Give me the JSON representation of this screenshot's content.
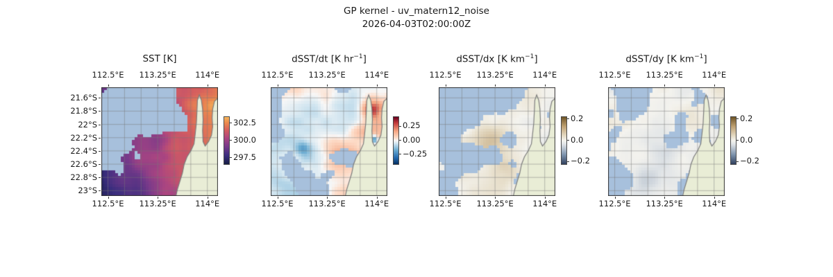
{
  "figure": {
    "title": "GP kernel - uv_matern12_noise",
    "timestamp": "2026-04-03T02:00:00Z"
  },
  "chart_data": {
    "type": "heatmap",
    "title": "GP kernel - uv_matern12_noise",
    "subtitle": "2026-04-03T02:00:00Z",
    "geo": {
      "lon_range": [
        112.4,
        114.16
      ],
      "lat_range": [
        -23.08,
        -21.44
      ],
      "grid_lon_step": 0.25,
      "grid_lat_step": 0.2
    },
    "x_tick_labels": [
      "112.5°E",
      "113.25°E",
      "114°E"
    ],
    "x_tick_lons": [
      112.5,
      113.25,
      114
    ],
    "y_tick_labels": [
      "21.6°S",
      "21.8°S",
      "22°S",
      "22.2°S",
      "22.4°S",
      "22.6°S",
      "22.8°S",
      "23°S"
    ],
    "y_tick_lats": [
      -21.6,
      -21.8,
      -22.0,
      -22.2,
      -22.4,
      -22.6,
      -22.8,
      -23.0
    ],
    "panels": [
      {
        "id": "sst",
        "title_pre": "SST [K]",
        "title_sup": "",
        "title_post": "",
        "colormap": "thermal",
        "vmin": 296.6,
        "vmax": 303.4,
        "cbar_ticks": [
          {
            "value": 302.5,
            "label": "302.5"
          },
          {
            "value": 300.0,
            "label": "300.0"
          },
          {
            "value": 297.5,
            "label": "297.5"
          }
        ],
        "field": "gradient",
        "seed": 7,
        "cloud_threshold": 0.64,
        "cloud_blobs": [
          [
            0.28,
            0.1,
            0.3,
            0.42
          ],
          [
            0.1,
            0.32,
            0.22,
            0.35
          ],
          [
            0.5,
            0.16,
            0.16,
            0.3
          ],
          [
            0.03,
            0.62,
            0.1,
            0.28
          ],
          [
            0.2,
            0.52,
            0.08,
            0.2
          ]
        ]
      },
      {
        "id": "dsst_dt",
        "title_pre": "dSST/dt [K hr",
        "title_sup": "−1",
        "title_post": "]",
        "colormap": "rdbu",
        "vmin": -0.42,
        "vmax": 0.42,
        "cbar_ticks": [
          {
            "value": 0.25,
            "label": "0.25"
          },
          {
            "value": 0.0,
            "label": "0.00"
          },
          {
            "value": -0.25,
            "label": "−0.25"
          }
        ],
        "field": "coastal",
        "seed": 13,
        "cloud_threshold": 0.7,
        "cloud_blobs": [
          [
            0.04,
            0.04,
            0.14,
            0.4
          ],
          [
            0.16,
            0.7,
            0.1,
            0.3
          ],
          [
            0.03,
            0.45,
            0.07,
            0.28
          ],
          [
            0.3,
            0.92,
            0.08,
            0.25
          ],
          [
            0.92,
            0.6,
            0.05,
            0.25
          ]
        ]
      },
      {
        "id": "dsst_dx",
        "title_pre": "dSST/dx [K km",
        "title_sup": "−1",
        "title_post": "]",
        "colormap": "diff",
        "vmin": -0.22,
        "vmax": 0.22,
        "cbar_ticks": [
          {
            "value": 0.2,
            "label": "0.2"
          },
          {
            "value": 0.0,
            "label": "0.0"
          },
          {
            "value": -0.2,
            "label": "−0.2"
          }
        ],
        "field": "weak-brown",
        "seed": 21,
        "cloud_threshold": 0.62,
        "cloud_blobs": [
          [
            0.16,
            0.12,
            0.3,
            0.45
          ],
          [
            0.04,
            0.5,
            0.14,
            0.35
          ],
          [
            0.46,
            0.06,
            0.14,
            0.3
          ],
          [
            0.72,
            0.88,
            0.14,
            0.3
          ],
          [
            0.28,
            0.62,
            0.1,
            0.22
          ],
          [
            0.6,
            0.45,
            0.07,
            0.18
          ]
        ]
      },
      {
        "id": "dsst_dy",
        "title_pre": "dSST/dy [K km",
        "title_sup": "−1",
        "title_post": "]",
        "colormap": "diff",
        "vmin": -0.22,
        "vmax": 0.22,
        "cbar_ticks": [
          {
            "value": 0.2,
            "label": "0.2"
          },
          {
            "value": 0.0,
            "label": "0.0"
          },
          {
            "value": -0.2,
            "label": "−0.2"
          }
        ],
        "field": "weak-blue",
        "seed": 29,
        "cloud_threshold": 0.62,
        "cloud_blobs": [
          [
            0.1,
            0.28,
            0.24,
            0.45
          ],
          [
            0.06,
            0.72,
            0.14,
            0.33
          ],
          [
            0.36,
            0.88,
            0.14,
            0.28
          ],
          [
            0.2,
            0.06,
            0.12,
            0.25
          ],
          [
            0.55,
            0.5,
            0.07,
            0.16
          ],
          [
            0.8,
            0.1,
            0.07,
            0.16
          ]
        ]
      }
    ],
    "colors": {
      "land": "#e9edd6",
      "cloud": "#a7c0dc",
      "coast": "#7d7d7d",
      "grid": "#787878",
      "spine": "#333333"
    },
    "colormaps": {
      "thermal": [
        [
          0,
          "#151d44"
        ],
        [
          0.18,
          "#3a2d7e"
        ],
        [
          0.38,
          "#793a8a"
        ],
        [
          0.55,
          "#aa4581"
        ],
        [
          0.72,
          "#d45d5f"
        ],
        [
          0.88,
          "#ec8b4e"
        ],
        [
          1,
          "#f6b65c"
        ]
      ],
      "rdbu": [
        [
          0,
          "#053061"
        ],
        [
          0.13,
          "#2166ac"
        ],
        [
          0.3,
          "#6bacd1"
        ],
        [
          0.44,
          "#d1e5f0"
        ],
        [
          0.5,
          "#f7f7f7"
        ],
        [
          0.56,
          "#fddbc7"
        ],
        [
          0.7,
          "#f4a582"
        ],
        [
          0.87,
          "#c43c3c"
        ],
        [
          1,
          "#67001f"
        ]
      ],
      "diff": [
        [
          0,
          "#31415e"
        ],
        [
          0.2,
          "#7d93ad"
        ],
        [
          0.42,
          "#dfe3e6"
        ],
        [
          0.5,
          "#f4f3ee"
        ],
        [
          0.58,
          "#e8e0cd"
        ],
        [
          0.8,
          "#bfa172"
        ],
        [
          1,
          "#6e5426"
        ]
      ]
    },
    "coastline": [
      [
        1.0,
        0.1
      ],
      [
        0.97,
        0.13
      ],
      [
        0.955,
        0.2
      ],
      [
        0.95,
        0.28
      ],
      [
        0.955,
        0.36
      ],
      [
        0.945,
        0.44
      ],
      [
        0.92,
        0.5
      ],
      [
        0.89,
        0.54
      ],
      [
        0.872,
        0.5
      ],
      [
        0.868,
        0.4
      ],
      [
        0.872,
        0.3
      ],
      [
        0.868,
        0.2
      ],
      [
        0.858,
        0.12
      ],
      [
        0.84,
        0.07
      ],
      [
        0.824,
        0.12
      ],
      [
        0.82,
        0.22
      ],
      [
        0.815,
        0.33
      ],
      [
        0.805,
        0.43
      ],
      [
        0.795,
        0.52
      ],
      [
        0.77,
        0.58
      ],
      [
        0.735,
        0.64
      ],
      [
        0.71,
        0.71
      ],
      [
        0.695,
        0.79
      ],
      [
        0.672,
        0.87
      ],
      [
        0.652,
        0.94
      ],
      [
        0.64,
        1.0
      ],
      [
        1.0,
        1.0
      ]
    ]
  }
}
